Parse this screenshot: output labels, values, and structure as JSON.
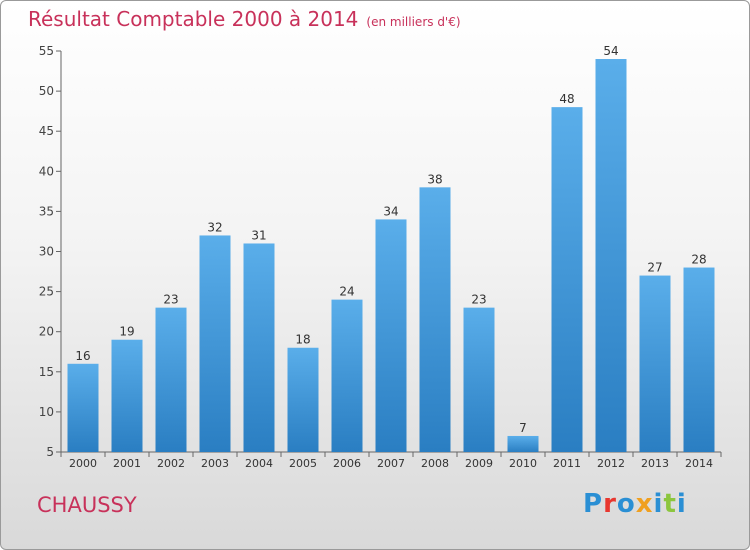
{
  "header": {
    "title": "Résultat Comptable 2000 à 2014",
    "subtitle": "(en milliers d'€)"
  },
  "footer": {
    "commune": "CHAUSSY",
    "logo_text": "Proxiti",
    "logo_colors": [
      "#2a8fd4",
      "#e8372f",
      "#2a8fd4",
      "#f0a020",
      "#2a8fd4",
      "#8cc63e",
      "#2a8fd4"
    ]
  },
  "chart_data": {
    "type": "bar",
    "categories": [
      "2000",
      "2001",
      "2002",
      "2003",
      "2004",
      "2005",
      "2006",
      "2007",
      "2008",
      "2009",
      "2010",
      "2011",
      "2012",
      "2013",
      "2014"
    ],
    "values": [
      16,
      19,
      23,
      32,
      31,
      18,
      24,
      34,
      38,
      23,
      7,
      48,
      54,
      27,
      28
    ],
    "ylim": [
      5,
      55
    ],
    "yticks": [
      5,
      10,
      15,
      20,
      25,
      30,
      35,
      40,
      45,
      50,
      55
    ],
    "grid": false,
    "bar_color": "#4a9fe0"
  }
}
